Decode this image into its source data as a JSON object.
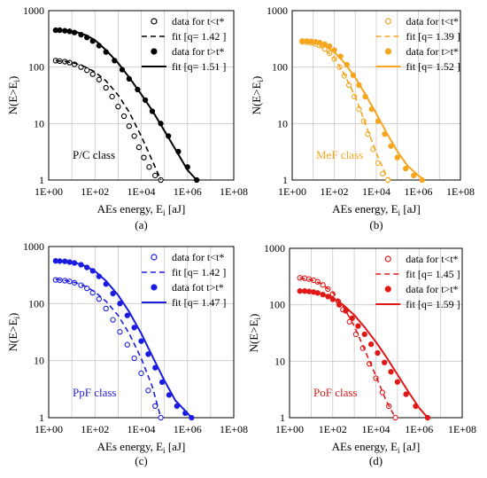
{
  "chart_data": [
    {
      "type": "scatter",
      "panel_label": "(a)",
      "class_label": "P/C class",
      "color": "#000000",
      "xlabel": "AEs energy, E",
      "xlabel_sub": "i",
      "xlabel_unit": " [aJ]",
      "ylabel": "N(E>E",
      "ylabel_sub": "i",
      "ylabel_end": ")",
      "x_scale": "log",
      "y_scale": "log",
      "xlim": [
        1,
        100000000
      ],
      "ylim": [
        1,
        1000
      ],
      "x_ticks": [
        "1E+00",
        "1E+02",
        "1E+04",
        "1E+06",
        "1E+08"
      ],
      "y_ticks": [
        "1",
        "10",
        "100",
        "1000"
      ],
      "grid": true,
      "legend_placement": "top-right",
      "series": [
        {
          "name": "data for t<t*",
          "kind": "points",
          "marker": "open",
          "x": [
            2,
            3,
            5,
            8,
            13,
            25,
            45,
            80,
            150,
            300,
            550,
            1000,
            1800,
            3000,
            5000,
            8000,
            13000,
            22000,
            40000,
            70000
          ],
          "y": [
            130,
            128,
            125,
            120,
            112,
            100,
            88,
            75,
            60,
            43,
            30,
            20,
            13.5,
            9,
            6,
            3.8,
            2.5,
            1.7,
            1.2,
            1
          ]
        },
        {
          "name": "fit [q= 1.42 ]",
          "kind": "line",
          "dash": true,
          "x": [
            2,
            5,
            15,
            40,
            100,
            300,
            1000,
            3000,
            10000,
            30000,
            70000
          ],
          "y": [
            130,
            126,
            116,
            100,
            82,
            57,
            32,
            16,
            6,
            2.2,
            1
          ]
        },
        {
          "name": "data for t>t*",
          "kind": "points",
          "marker": "filled",
          "x": [
            2,
            3,
            5,
            8,
            13,
            25,
            45,
            80,
            150,
            300,
            700,
            1500,
            3000,
            7000,
            15000,
            30000,
            70000,
            150000,
            400000,
            1000000,
            2500000
          ],
          "y": [
            450,
            450,
            440,
            430,
            410,
            375,
            335,
            290,
            240,
            185,
            130,
            90,
            62,
            40,
            26,
            16.5,
            10,
            6,
            3.2,
            1.7,
            1
          ]
        },
        {
          "name": "fit [q= 1.51 ]",
          "kind": "line",
          "dash": false,
          "x": [
            2,
            5,
            15,
            40,
            100,
            300,
            1000,
            3000,
            10000,
            30000,
            100000,
            300000,
            1000000,
            2500000
          ],
          "y": [
            460,
            450,
            420,
            370,
            300,
            200,
            118,
            66,
            33,
            17,
            7.5,
            3.5,
            1.5,
            1
          ]
        }
      ]
    },
    {
      "type": "scatter",
      "panel_label": "(b)",
      "class_label": "MeF class",
      "color": "#F5A51E",
      "xlabel": "AEs energy, E",
      "xlabel_sub": "i",
      "xlabel_unit": " [aJ]",
      "ylabel": "N(E>E",
      "ylabel_sub": "i",
      "ylabel_end": ")",
      "x_scale": "log",
      "y_scale": "log",
      "xlim": [
        1,
        100000000
      ],
      "ylim": [
        1,
        1000
      ],
      "x_ticks": [
        "1E+00",
        "1E+02",
        "1E+04",
        "1E+06",
        "1E+08"
      ],
      "y_ticks": [
        "1",
        "10",
        "100",
        "1000"
      ],
      "grid": true,
      "legend_placement": "top-right",
      "series": [
        {
          "name": "data for t<t*",
          "kind": "points",
          "marker": "open",
          "x": [
            3,
            5,
            8,
            13,
            20,
            35,
            60,
            100,
            180,
            300,
            500,
            900,
            1500,
            2500,
            4000,
            7000,
            12000,
            20000,
            35000
          ],
          "y": [
            280,
            275,
            268,
            255,
            240,
            210,
            175,
            140,
            100,
            70,
            48,
            30,
            18,
            11,
            6.5,
            3.5,
            2,
            1.3,
            1
          ]
        },
        {
          "name": "fit [q= 1.39 ]",
          "kind": "line",
          "dash": true,
          "x": [
            3,
            10,
            30,
            100,
            300,
            1000,
            3000,
            10000,
            30000,
            50000
          ],
          "y": [
            285,
            265,
            220,
            145,
            75,
            30,
            10,
            3,
            1.2,
            1
          ]
        },
        {
          "name": "data for t>t*",
          "kind": "points",
          "marker": "filled",
          "x": [
            3,
            5,
            8,
            13,
            20,
            35,
            60,
            100,
            200,
            400,
            800,
            1500,
            3000,
            6000,
            12000,
            25000,
            50000,
            100000,
            250000,
            600000,
            1500000
          ],
          "y": [
            290,
            290,
            285,
            280,
            272,
            255,
            235,
            200,
            155,
            110,
            72,
            48,
            30,
            18,
            11,
            6.5,
            4,
            2.5,
            1.6,
            1.2,
            1
          ]
        },
        {
          "name": "fit [q= 1.52 ]",
          "kind": "line",
          "dash": false,
          "x": [
            3,
            10,
            30,
            100,
            300,
            1000,
            3000,
            10000,
            30000,
            100000,
            300000,
            1000000,
            2000000
          ],
          "y": [
            295,
            280,
            245,
            185,
            120,
            65,
            33,
            15,
            7,
            3.2,
            1.8,
            1.2,
            1
          ]
        }
      ]
    },
    {
      "type": "scatter",
      "panel_label": "(c)",
      "class_label": "PpF class",
      "color": "#1C1CE0",
      "xlabel": "AEs energy, E",
      "xlabel_sub": "i",
      "xlabel_unit": " [aJ]",
      "ylabel": "N(E>E",
      "ylabel_sub": "i",
      "ylabel_end": ")",
      "x_scale": "log",
      "y_scale": "log",
      "xlim": [
        1,
        100000000
      ],
      "ylim": [
        1,
        1000
      ],
      "x_ticks": [
        "1E+00",
        "1E+02",
        "1E+04",
        "1E+06",
        "1E+08"
      ],
      "y_ticks": [
        "1",
        "10",
        "100",
        "1000"
      ],
      "grid": true,
      "legend_placement": "top-right",
      "series": [
        {
          "name": "data for t<t*",
          "kind": "points",
          "marker": "open",
          "x": [
            2,
            3,
            5,
            8,
            13,
            25,
            45,
            80,
            150,
            300,
            600,
            1200,
            2500,
            5000,
            10000,
            20000,
            40000,
            70000
          ],
          "y": [
            260,
            258,
            252,
            245,
            232,
            210,
            185,
            155,
            120,
            82,
            52,
            32,
            19,
            11,
            6,
            3,
            1.6,
            1
          ]
        },
        {
          "name": "fit [q= 1.42 ]",
          "kind": "line",
          "dash": true,
          "x": [
            2,
            5,
            15,
            40,
            100,
            300,
            1000,
            3000,
            10000,
            30000,
            70000
          ],
          "y": [
            265,
            255,
            232,
            200,
            160,
            110,
            62,
            30,
            11,
            3.5,
            1
          ]
        },
        {
          "name": "data fot t>t*",
          "kind": "points",
          "marker": "filled",
          "x": [
            2,
            3,
            5,
            8,
            13,
            25,
            45,
            80,
            150,
            300,
            600,
            1200,
            2500,
            5000,
            10000,
            20000,
            40000,
            80000,
            160000,
            350000,
            800000,
            1500000
          ],
          "y": [
            560,
            555,
            550,
            535,
            515,
            480,
            430,
            375,
            300,
            220,
            150,
            100,
            62,
            38,
            22,
            13,
            7.5,
            4.2,
            2.5,
            1.6,
            1.2,
            1
          ]
        },
        {
          "name": "fit [q= 1.47 ]",
          "kind": "line",
          "dash": false,
          "x": [
            2,
            5,
            15,
            40,
            100,
            300,
            1000,
            3000,
            10000,
            30000,
            100000,
            300000,
            1000000,
            1500000
          ],
          "y": [
            570,
            555,
            515,
            450,
            370,
            250,
            140,
            72,
            30,
            12,
            4.5,
            2,
            1.2,
            1
          ]
        }
      ]
    },
    {
      "type": "scatter",
      "panel_label": "(d)",
      "class_label": "PoF class",
      "color": "#E01818",
      "xlabel": "AEs energy, E",
      "xlabel_sub": "i",
      "xlabel_unit": " [aJ]",
      "ylabel": "N(E>E",
      "ylabel_sub": "i",
      "ylabel_end": ")",
      "x_scale": "log",
      "y_scale": "log",
      "xlim": [
        1,
        100000000
      ],
      "ylim": [
        1,
        1000
      ],
      "x_ticks": [
        "1E+00",
        "1E+02",
        "1E+04",
        "1E+06",
        "1E+08"
      ],
      "y_ticks": [
        "1",
        "10",
        "100",
        "1000"
      ],
      "grid": true,
      "legend_placement": "top-right",
      "series": [
        {
          "name": "data for t<t*",
          "kind": "points",
          "marker": "open",
          "x": [
            3,
            5,
            8,
            13,
            20,
            35,
            60,
            100,
            180,
            300,
            600,
            1200,
            2500,
            5000,
            10000,
            20000,
            40000,
            80000
          ],
          "y": [
            300,
            295,
            285,
            272,
            255,
            225,
            190,
            155,
            115,
            82,
            50,
            30,
            17,
            9,
            5,
            2.8,
            1.6,
            1
          ]
        },
        {
          "name": "fit [q= 1.45 ]",
          "kind": "line",
          "dash": true,
          "x": [
            3,
            10,
            30,
            100,
            300,
            1000,
            3000,
            10000,
            30000,
            80000
          ],
          "y": [
            300,
            278,
            235,
            165,
            95,
            42,
            16,
            5.5,
            2,
            1
          ]
        },
        {
          "name": "data for t>t*",
          "kind": "points",
          "marker": "filled",
          "x": [
            3,
            5,
            8,
            13,
            20,
            35,
            60,
            100,
            200,
            400,
            800,
            1500,
            3000,
            6000,
            12000,
            25000,
            50000,
            100000,
            250000,
            700000,
            2500000
          ],
          "y": [
            175,
            175,
            172,
            168,
            162,
            152,
            140,
            125,
            100,
            78,
            58,
            42,
            30,
            20,
            14,
            9.5,
            6.5,
            4.3,
            2.6,
            1.6,
            1
          ]
        },
        {
          "name": "fit [q= 1.59 ]",
          "kind": "line",
          "dash": false,
          "x": [
            3,
            10,
            30,
            100,
            300,
            1000,
            3000,
            10000,
            30000,
            100000,
            300000,
            1000000,
            2500000
          ],
          "y": [
            178,
            172,
            158,
            132,
            100,
            66,
            40,
            22,
            12,
            5.8,
            3,
            1.5,
            1
          ]
        }
      ]
    }
  ]
}
